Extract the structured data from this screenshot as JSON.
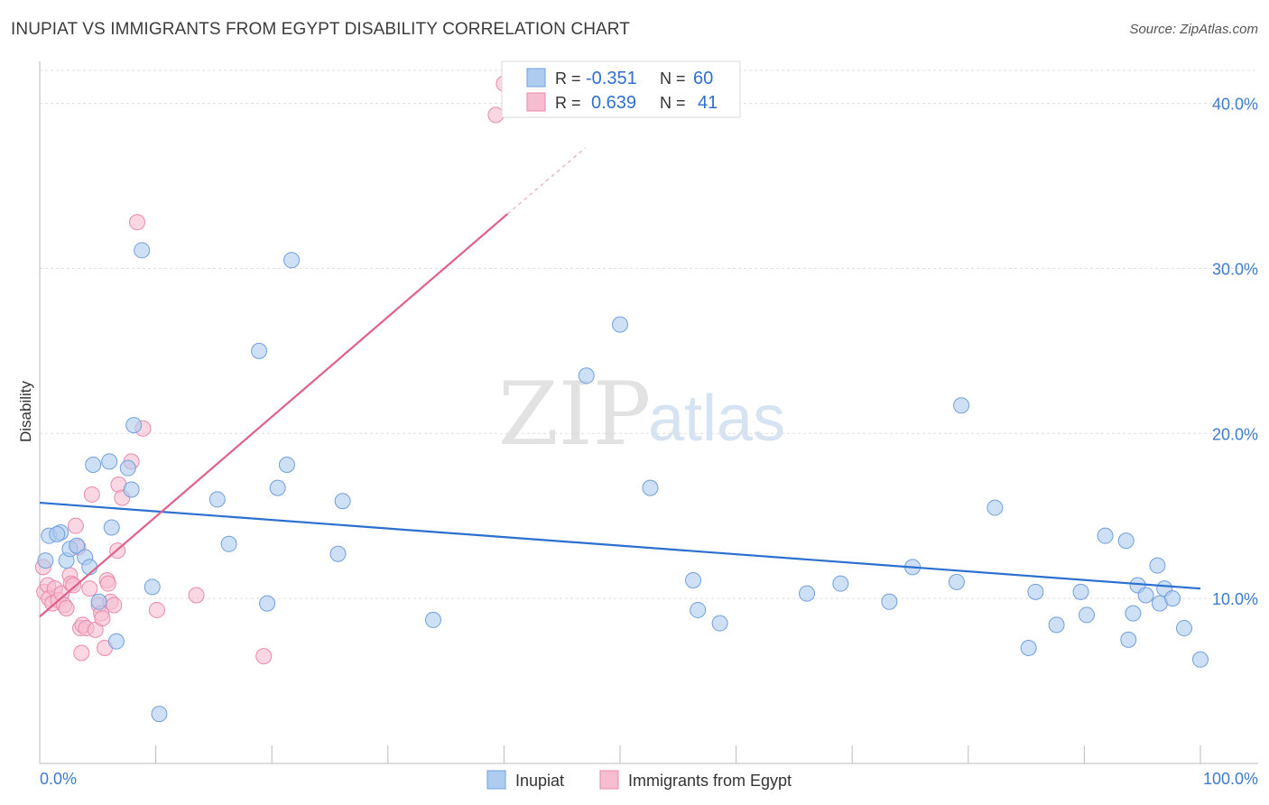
{
  "title": "INUPIAT VS IMMIGRANTS FROM EGYPT DISABILITY CORRELATION CHART",
  "source": "Source: ZipAtlas.com",
  "watermark": {
    "part1": "ZIP",
    "part2": "atlas"
  },
  "colors": {
    "inupiat_fill": "#aecbf0",
    "inupiat_stroke": "#6fa0dc",
    "inupiat_line": "#2b6fcf",
    "egypt_fill": "#f6bcd0",
    "egypt_stroke": "#e98aab",
    "egypt_line": "#e0608a",
    "axis_text": "#3d7cc9",
    "grid": "#dddddd"
  },
  "legend_top": {
    "rows": [
      {
        "r_label": "R =",
        "r_value": "-0.351",
        "n_label": "N =",
        "n_value": "60"
      },
      {
        "r_label": "R =",
        "r_value": "0.639",
        "n_label": "N =",
        "n_value": "41"
      }
    ]
  },
  "legend_bottom": {
    "items": [
      "Inupiat",
      "Immigrants from Egypt"
    ]
  },
  "chart_data": {
    "type": "scatter",
    "title": "INUPIAT VS IMMIGRANTS FROM EGYPT DISABILITY CORRELATION CHART",
    "xlabel": "",
    "ylabel": "Disability",
    "xlim": [
      0,
      100
    ],
    "ylim": [
      0,
      42
    ],
    "x_tick_labels": [
      "0.0%",
      "100.0%"
    ],
    "y_ticks": [
      10,
      20,
      30,
      40
    ],
    "y_tick_labels": [
      "10.0%",
      "20.0%",
      "30.0%",
      "40.0%"
    ],
    "series": [
      {
        "name": "Inupiat",
        "R": -0.351,
        "N": 60,
        "trend": {
          "x0": 0,
          "y0": 15.8,
          "x1": 100,
          "y1": 10.6
        },
        "points": [
          [
            0.5,
            12.3
          ],
          [
            0.8,
            13.8
          ],
          [
            1.8,
            14.0
          ],
          [
            1.5,
            13.9
          ],
          [
            2.3,
            12.3
          ],
          [
            2.6,
            13.0
          ],
          [
            3.2,
            13.2
          ],
          [
            3.9,
            12.5
          ],
          [
            4.3,
            11.9
          ],
          [
            4.6,
            18.1
          ],
          [
            5.1,
            9.8
          ],
          [
            6.0,
            18.3
          ],
          [
            6.2,
            14.3
          ],
          [
            6.6,
            7.4
          ],
          [
            7.6,
            17.9
          ],
          [
            7.9,
            16.6
          ],
          [
            8.1,
            20.5
          ],
          [
            8.8,
            31.1
          ],
          [
            9.7,
            10.7
          ],
          [
            10.3,
            3.0
          ],
          [
            15.3,
            16.0
          ],
          [
            16.3,
            13.3
          ],
          [
            18.9,
            25.0
          ],
          [
            19.6,
            9.7
          ],
          [
            20.5,
            16.7
          ],
          [
            21.3,
            18.1
          ],
          [
            21.7,
            30.5
          ],
          [
            25.7,
            12.7
          ],
          [
            26.1,
            15.9
          ],
          [
            33.9,
            8.7
          ],
          [
            47.1,
            23.5
          ],
          [
            50.0,
            26.6
          ],
          [
            52.6,
            16.7
          ],
          [
            56.3,
            11.1
          ],
          [
            56.7,
            9.3
          ],
          [
            58.6,
            8.5
          ],
          [
            66.1,
            10.3
          ],
          [
            69.0,
            10.9
          ],
          [
            73.2,
            9.8
          ],
          [
            75.2,
            11.9
          ],
          [
            79.0,
            11.0
          ],
          [
            79.4,
            21.7
          ],
          [
            82.3,
            15.5
          ],
          [
            85.2,
            7.0
          ],
          [
            85.8,
            10.4
          ],
          [
            87.6,
            8.4
          ],
          [
            89.7,
            10.4
          ],
          [
            90.2,
            9.0
          ],
          [
            91.8,
            13.8
          ],
          [
            93.6,
            13.5
          ],
          [
            93.8,
            7.5
          ],
          [
            94.2,
            9.1
          ],
          [
            94.6,
            10.8
          ],
          [
            95.3,
            10.2
          ],
          [
            96.3,
            12.0
          ],
          [
            96.5,
            9.7
          ],
          [
            96.9,
            10.6
          ],
          [
            97.6,
            10.0
          ],
          [
            98.6,
            8.2
          ],
          [
            100.0,
            6.3
          ]
        ]
      },
      {
        "name": "Immigrants from Egypt",
        "R": 0.639,
        "N": 41,
        "trend": {
          "x0": 0,
          "y0": 8.9,
          "x1": 40.3,
          "y1": 33.3
        },
        "trend_dashed": {
          "x0": 40.3,
          "y0": 33.3,
          "x1": 47.0,
          "y1": 37.3
        },
        "points": [
          [
            0.3,
            11.9
          ],
          [
            0.4,
            10.4
          ],
          [
            0.7,
            10.8
          ],
          [
            0.8,
            10.0
          ],
          [
            1.1,
            9.7
          ],
          [
            1.3,
            10.6
          ],
          [
            1.6,
            9.9
          ],
          [
            1.9,
            10.3
          ],
          [
            2.1,
            9.6
          ],
          [
            2.3,
            9.4
          ],
          [
            2.6,
            11.4
          ],
          [
            2.7,
            10.9
          ],
          [
            2.9,
            10.8
          ],
          [
            3.1,
            14.4
          ],
          [
            3.3,
            13.1
          ],
          [
            3.5,
            8.2
          ],
          [
            3.6,
            6.7
          ],
          [
            3.7,
            8.4
          ],
          [
            4.0,
            8.2
          ],
          [
            4.3,
            10.6
          ],
          [
            4.5,
            16.3
          ],
          [
            4.8,
            8.1
          ],
          [
            5.1,
            9.6
          ],
          [
            5.3,
            9.1
          ],
          [
            5.4,
            8.8
          ],
          [
            5.6,
            7.0
          ],
          [
            5.8,
            11.1
          ],
          [
            5.9,
            10.9
          ],
          [
            6.1,
            9.8
          ],
          [
            6.4,
            9.6
          ],
          [
            6.7,
            12.9
          ],
          [
            6.8,
            16.9
          ],
          [
            7.1,
            16.1
          ],
          [
            7.9,
            18.3
          ],
          [
            8.4,
            32.8
          ],
          [
            8.9,
            20.3
          ],
          [
            10.1,
            9.3
          ],
          [
            13.5,
            10.2
          ],
          [
            19.3,
            6.5
          ],
          [
            39.3,
            39.3
          ],
          [
            40.0,
            41.2
          ]
        ]
      }
    ]
  }
}
